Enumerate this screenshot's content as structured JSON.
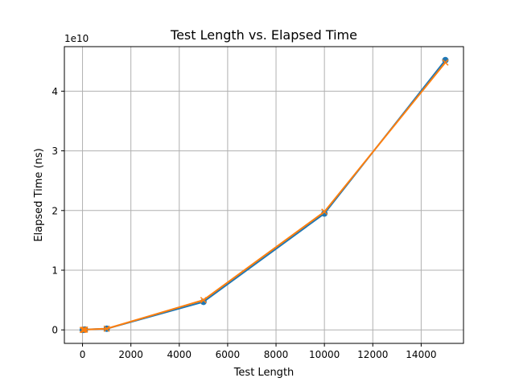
{
  "chart_data": {
    "type": "line",
    "title": "Test Length vs. Elapsed Time",
    "xlabel": "Test Length",
    "ylabel": "Elapsed Time (ns)",
    "y_offset_label": "1e10",
    "y_scale_factor": 10000000000,
    "xlim": [
      -750,
      15750
    ],
    "ylim": [
      -2260000000,
      47460000000
    ],
    "x_ticks": [
      0,
      2000,
      4000,
      6000,
      8000,
      10000,
      12000,
      14000
    ],
    "x_tick_labels": [
      "0",
      "2000",
      "4000",
      "6000",
      "8000",
      "10000",
      "12000",
      "14000"
    ],
    "y_ticks": [
      0,
      10000000000,
      20000000000,
      30000000000,
      40000000000
    ],
    "y_tick_labels": [
      "0",
      "1",
      "2",
      "3",
      "4"
    ],
    "grid": true,
    "series": [
      {
        "color": "#1f77b4",
        "marker": "circle",
        "x": [
          10,
          50,
          100,
          1000,
          5000,
          10000,
          15000
        ],
        "y": [
          2000000,
          20000000,
          70000000,
          200000000,
          4700000000,
          19500000000,
          45200000000
        ]
      },
      {
        "color": "#ff7f0e",
        "marker": "x",
        "x": [
          10,
          50,
          100,
          1000,
          5000,
          10000,
          15000
        ],
        "y": [
          500000,
          12000000,
          45000000,
          200000000,
          5000000000,
          19800000000,
          44800000000
        ]
      }
    ]
  }
}
